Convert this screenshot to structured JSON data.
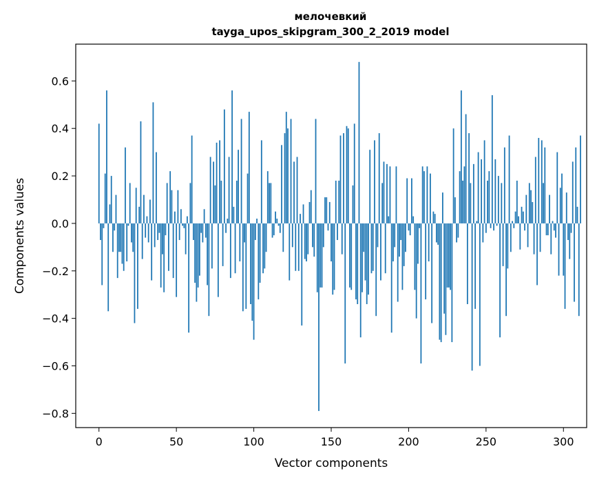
{
  "chart_data": {
    "type": "bar",
    "title": "мелочевкий",
    "subtitle": "tayga_upos_skipgram_300_2_2019 model",
    "xlabel": "Vector components",
    "ylabel": "Components values",
    "xlim": [
      -15,
      315
    ],
    "ylim": [
      -0.86,
      0.755
    ],
    "xticks": [
      0,
      50,
      100,
      150,
      200,
      250,
      300
    ],
    "yticks": [
      -0.8,
      -0.6,
      -0.4,
      -0.2,
      0.0,
      0.2,
      0.4,
      0.6
    ],
    "ytick_labels": [
      "−0.8",
      "−0.6",
      "−0.4",
      "−0.2",
      "0.0",
      "0.2",
      "0.4",
      "0.6"
    ],
    "grid": false,
    "bar_color": "#1f77b4",
    "values": [
      0.42,
      -0.07,
      -0.26,
      -0.02,
      0.21,
      0.56,
      -0.37,
      0.08,
      0.2,
      -0.12,
      -0.03,
      0.12,
      -0.23,
      -0.12,
      -0.12,
      -0.17,
      -0.2,
      0.32,
      -0.16,
      -0.01,
      0.17,
      -0.08,
      -0.12,
      -0.42,
      0.15,
      -0.36,
      0.07,
      0.43,
      -0.15,
      0.12,
      -0.06,
      0.03,
      -0.08,
      0.1,
      -0.24,
      0.51,
      -0.1,
      0.3,
      -0.07,
      -0.04,
      -0.27,
      -0.13,
      -0.29,
      -0.05,
      0.17,
      -0.2,
      0.22,
      0.14,
      -0.23,
      0.05,
      -0.31,
      0.14,
      -0.07,
      0.06,
      -0.01,
      -0.02,
      -0.13,
      0.03,
      -0.46,
      0.17,
      0.37,
      -0.07,
      -0.25,
      -0.33,
      -0.27,
      -0.22,
      -0.04,
      -0.08,
      0.06,
      -0.06,
      -0.26,
      -0.39,
      0.28,
      -0.19,
      0.26,
      0.16,
      0.34,
      -0.31,
      0.35,
      0.18,
      -0.18,
      0.48,
      -0.04,
      0.02,
      0.28,
      -0.23,
      0.56,
      0.07,
      -0.21,
      0.18,
      0.31,
      -0.16,
      0.44,
      -0.37,
      -0.08,
      -0.36,
      0.21,
      0.47,
      -0.34,
      -0.41,
      -0.49,
      -0.07,
      0.02,
      -0.32,
      -0.25,
      0.35,
      -0.21,
      -0.19,
      -0.12,
      0.22,
      0.17,
      0.17,
      -0.06,
      -0.05,
      0.05,
      0.02,
      -0.01,
      -0.04,
      0.33,
      -0.12,
      0.38,
      0.47,
      0.4,
      -0.24,
      0.44,
      -0.1,
      0.26,
      -0.2,
      0.28,
      -0.2,
      0.04,
      -0.43,
      0.08,
      -0.15,
      -0.16,
      -0.13,
      0.09,
      0.14,
      -0.1,
      -0.14,
      0.44,
      -0.29,
      -0.79,
      -0.27,
      -0.27,
      -0.1,
      0.11,
      0.11,
      -0.03,
      0.09,
      -0.16,
      -0.3,
      -0.28,
      0.18,
      -0.07,
      0.18,
      0.37,
      -0.13,
      0.38,
      -0.59,
      0.41,
      0.4,
      -0.27,
      -0.28,
      0.16,
      0.42,
      -0.32,
      -0.34,
      0.68,
      -0.48,
      -0.29,
      -0.12,
      -0.24,
      -0.34,
      -0.3,
      0.31,
      -0.21,
      -0.2,
      0.35,
      -0.39,
      -0.1,
      0.38,
      -0.24,
      0.17,
      0.26,
      -0.21,
      0.25,
      0.03,
      0.24,
      -0.46,
      -0.16,
      -0.1,
      0.24,
      -0.33,
      -0.14,
      -0.07,
      -0.28,
      -0.18,
      -0.12,
      0.19,
      -0.03,
      -0.05,
      0.19,
      0.03,
      -0.28,
      -0.4,
      -0.17,
      -0.02,
      -0.59,
      0.24,
      0.22,
      -0.32,
      0.24,
      -0.16,
      0.21,
      -0.42,
      0.05,
      0.04,
      -0.08,
      -0.09,
      -0.49,
      -0.5,
      0.13,
      -0.38,
      -0.47,
      -0.27,
      -0.27,
      -0.28,
      -0.5,
      0.4,
      0.11,
      -0.08,
      -0.06,
      0.22,
      0.56,
      0.18,
      0.24,
      0.46,
      -0.34,
      0.38,
      0.17,
      -0.62,
      0.25,
      -0.36,
      0.01,
      0.3,
      -0.6,
      0.27,
      -0.08,
      0.35,
      -0.04,
      0.18,
      0.22,
      -0.02,
      0.54,
      -0.03,
      0.27,
      -0.01,
      0.2,
      -0.48,
      0.17,
      -0.18,
      0.32,
      -0.39,
      -0.19,
      0.37,
      -0.12,
      0.01,
      -0.02,
      0.05,
      0.18,
      0.03,
      -0.11,
      0.07,
      0.05,
      -0.03,
      0.12,
      -0.1,
      0.17,
      0.14,
      0.09,
      -0.13,
      0.28,
      -0.26,
      0.36,
      -0.12,
      0.35,
      0.17,
      0.32,
      -0.05,
      -0.05,
      0.12,
      -0.13,
      0.01,
      -0.03,
      -0.06,
      0.3,
      -0.22,
      0.15,
      0.21,
      -0.22,
      -0.36,
      0.13,
      -0.07,
      -0.15,
      -0.04,
      0.26,
      -0.33,
      0.32,
      0.07,
      -0.39,
      0.37
    ]
  }
}
